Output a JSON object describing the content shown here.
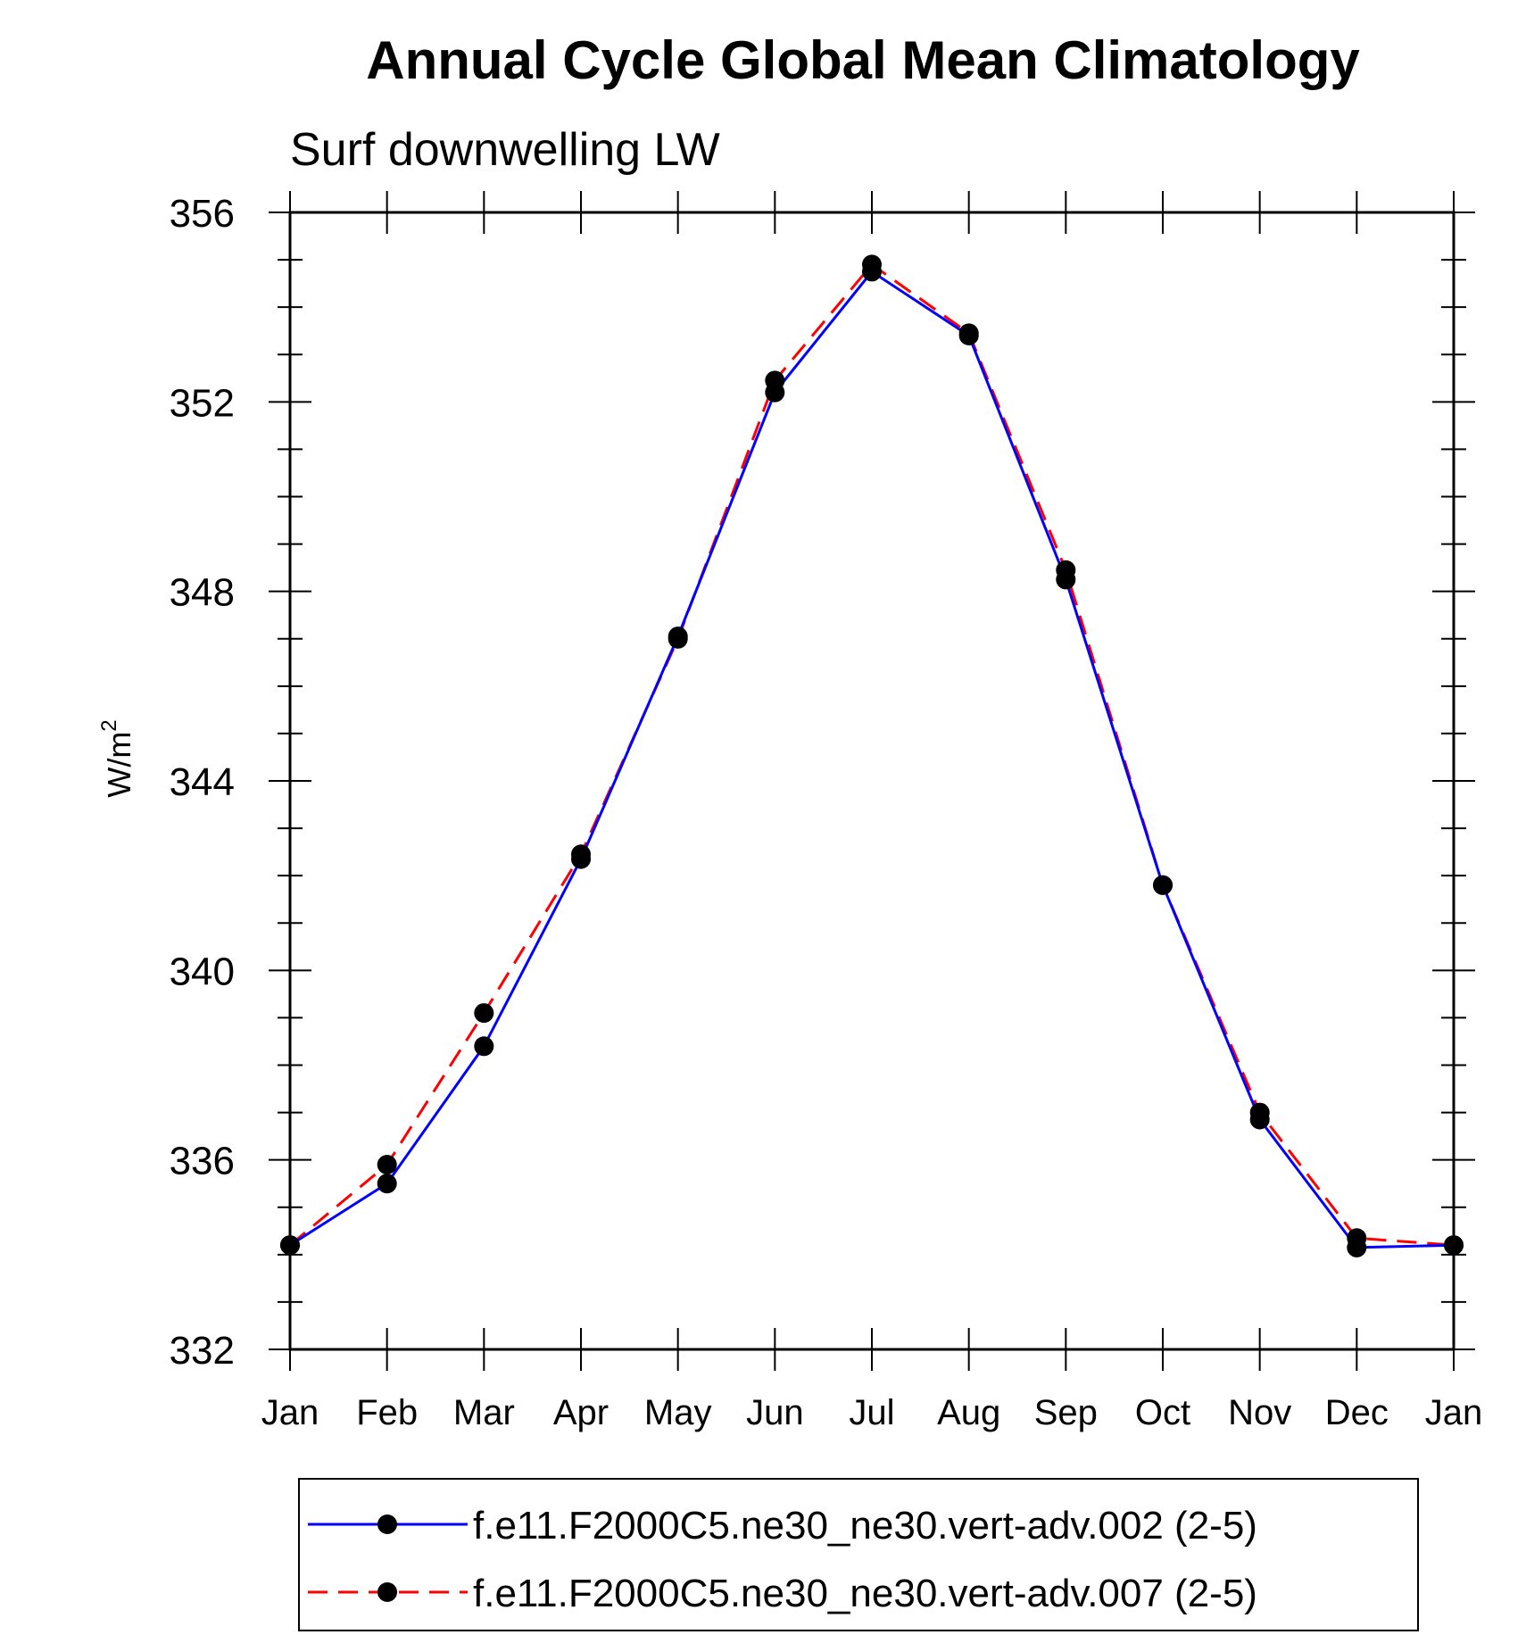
{
  "chart_data": {
    "type": "line",
    "title": "Annual Cycle Global Mean Climatology",
    "subtitle": "Surf downwelling LW",
    "xlabel": "",
    "ylabel": "W/m",
    "ylabel_superscript": "2",
    "categories": [
      "Jan",
      "Feb",
      "Mar",
      "Apr",
      "May",
      "Jun",
      "Jul",
      "Aug",
      "Sep",
      "Oct",
      "Nov",
      "Dec",
      "Jan"
    ],
    "ylim": [
      332,
      356
    ],
    "yticks": [
      332,
      336,
      340,
      344,
      348,
      352,
      356
    ],
    "series": [
      {
        "name": "f.e11.F2000C5.ne30_ne30.vert-adv.002 (2-5)",
        "color": "#0000ff",
        "dash": "solid",
        "values": [
          334.2,
          335.5,
          338.4,
          342.35,
          347.05,
          352.2,
          354.75,
          353.4,
          348.25,
          341.8,
          336.85,
          334.15,
          334.2
        ]
      },
      {
        "name": "f.e11.F2000C5.ne30_ne30.vert-adv.007 (2-5)",
        "color": "#ff0000",
        "dash": "dashed",
        "values": [
          334.2,
          335.9,
          339.1,
          342.45,
          347.0,
          352.45,
          354.9,
          353.45,
          348.45,
          341.8,
          337.0,
          334.35,
          334.2
        ]
      }
    ],
    "marker_color": "#000000"
  }
}
